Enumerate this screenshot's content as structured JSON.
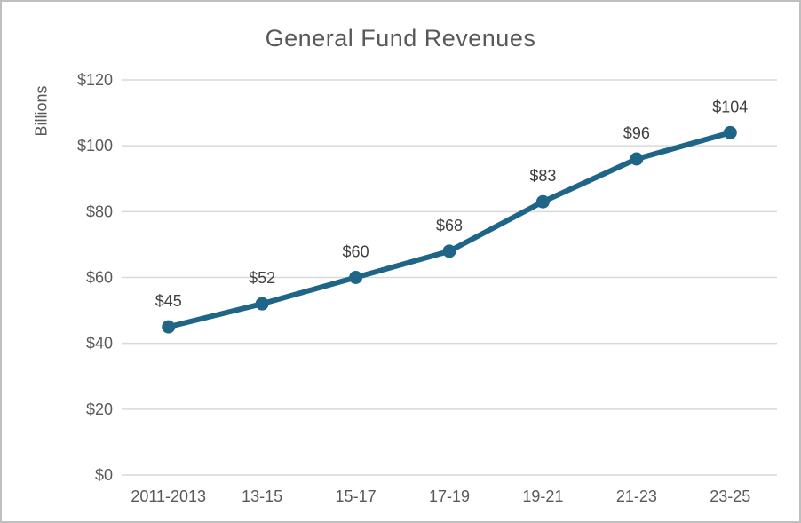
{
  "window": {
    "background_color": "#ffffff",
    "border_color": "#bfbfbf"
  },
  "chart_data": {
    "type": "line",
    "title": "General Fund Revenues",
    "xlabel": "",
    "ylabel": "Billions",
    "categories": [
      "2011-2013",
      "13-15",
      "15-17",
      "17-19",
      "19-21",
      "21-23",
      "23-25"
    ],
    "series": [
      {
        "name": "General Fund Revenues",
        "values": [
          45,
          52,
          60,
          68,
          83,
          96,
          104
        ],
        "color": "#1f6587",
        "marker": "circle"
      }
    ],
    "data_labels": [
      "$45",
      "$52",
      "$60",
      "$68",
      "$83",
      "$96",
      "$104"
    ],
    "y_ticks": [
      "$0",
      "$20",
      "$40",
      "$60",
      "$80",
      "$100",
      "$120"
    ],
    "y_tick_step": 20,
    "ylim": [
      0,
      120
    ],
    "grid": true,
    "gridline_color": "#d9d9d9",
    "axis_text_color": "#595959",
    "data_label_color": "#404040",
    "title_color": "#595959",
    "legend_position": "none"
  }
}
